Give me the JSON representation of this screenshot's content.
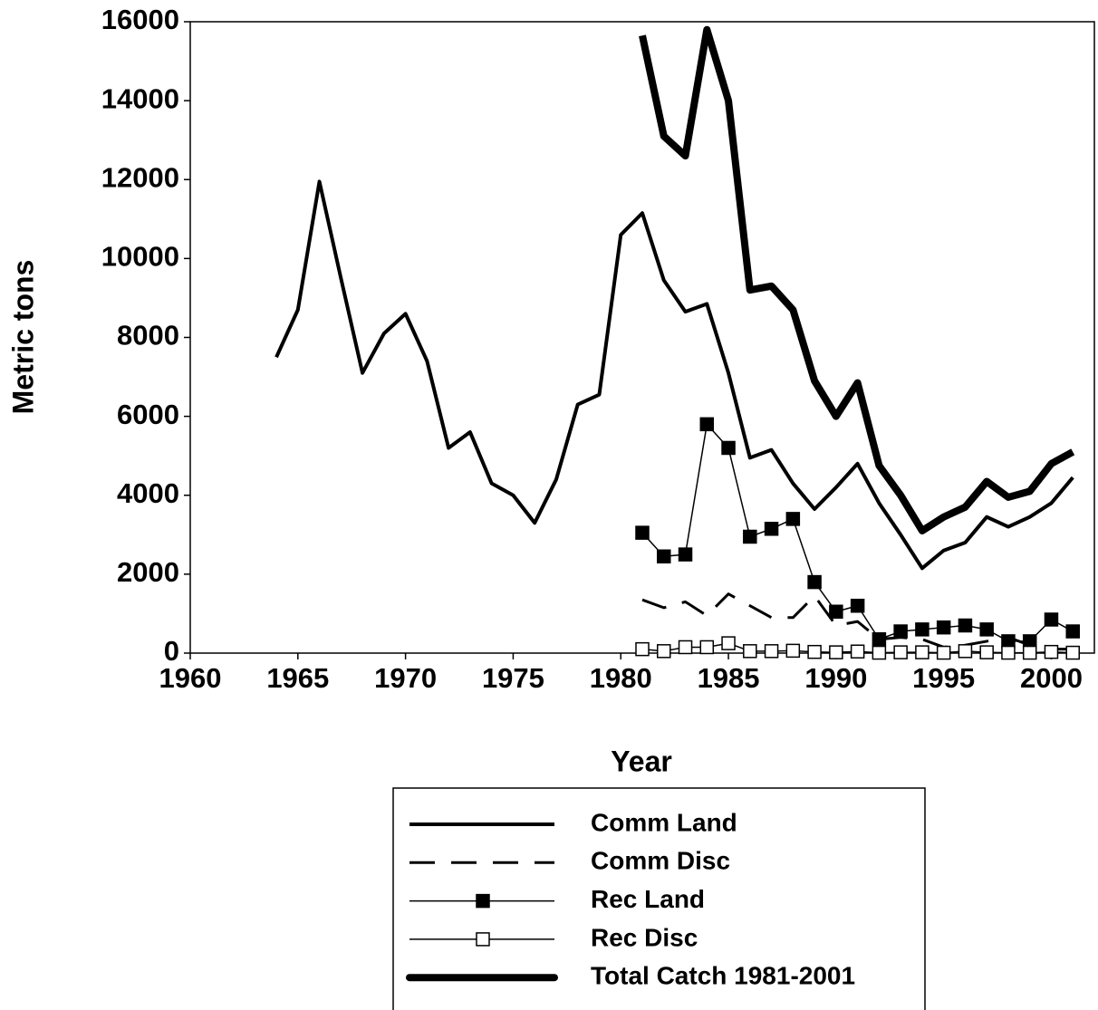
{
  "chart_data": {
    "type": "line",
    "x_label": "Year",
    "y_label": "Metric tons",
    "x": [
      1964,
      1965,
      1966,
      1967,
      1968,
      1969,
      1970,
      1971,
      1972,
      1973,
      1974,
      1975,
      1976,
      1977,
      1978,
      1979,
      1980,
      1981,
      1982,
      1983,
      1984,
      1985,
      1986,
      1987,
      1988,
      1989,
      1990,
      1991,
      1992,
      1993,
      1994,
      1995,
      1996,
      1997,
      1998,
      1999,
      2000,
      2001
    ],
    "xlim": [
      1960,
      2002
    ],
    "xticks": [
      1960,
      1965,
      1970,
      1975,
      1980,
      1985,
      1990,
      1995,
      2000
    ],
    "ylim": [
      0,
      16000
    ],
    "yticks": [
      0,
      2000,
      4000,
      6000,
      8000,
      10000,
      12000,
      14000,
      16000
    ],
    "series": [
      {
        "name": "Comm Land",
        "color": "#000000",
        "line_style": "solid",
        "line_width": 4,
        "marker": "none",
        "values": [
          7500,
          8700,
          11950,
          9500,
          7100,
          8100,
          8600,
          7400,
          5200,
          5600,
          4300,
          4000,
          3300,
          4400,
          6300,
          6550,
          10600,
          11150,
          9450,
          8650,
          8850,
          7100,
          4950,
          5150,
          4300,
          3650,
          4200,
          4800,
          3800,
          3000,
          2150,
          2600,
          2800,
          3450,
          3200,
          3450,
          3800,
          4450
        ]
      },
      {
        "name": "Comm Disc",
        "color": "#000000",
        "line_style": "dashed",
        "line_width": 3,
        "marker": "none",
        "values": [
          null,
          null,
          null,
          null,
          null,
          null,
          null,
          null,
          null,
          null,
          null,
          null,
          null,
          null,
          null,
          null,
          null,
          1350,
          1150,
          1300,
          950,
          1500,
          1200,
          900,
          900,
          1450,
          700,
          800,
          350,
          400,
          350,
          150,
          200,
          300,
          400,
          200,
          100,
          100
        ]
      },
      {
        "name": "Rec Land",
        "color": "#000000",
        "line_style": "solid",
        "line_width": 1.5,
        "marker": "filled-square",
        "values": [
          null,
          null,
          null,
          null,
          null,
          null,
          null,
          null,
          null,
          null,
          null,
          null,
          null,
          null,
          null,
          null,
          null,
          3050,
          2450,
          2500,
          5800,
          5200,
          2950,
          3150,
          3400,
          1800,
          1050,
          1200,
          350,
          550,
          600,
          650,
          700,
          600,
          300,
          300,
          850,
          550
        ]
      },
      {
        "name": "Rec Disc",
        "color": "#000000",
        "line_style": "solid",
        "line_width": 1.5,
        "marker": "open-square",
        "values": [
          null,
          null,
          null,
          null,
          null,
          null,
          null,
          null,
          null,
          null,
          null,
          null,
          null,
          null,
          null,
          null,
          null,
          100,
          50,
          150,
          150,
          250,
          50,
          50,
          60,
          30,
          20,
          40,
          10,
          20,
          20,
          10,
          50,
          20,
          10,
          10,
          30,
          10
        ]
      },
      {
        "name": "Total Catch 1981-2001",
        "color": "#000000",
        "line_style": "solid",
        "line_width": 8,
        "marker": "none",
        "values": [
          null,
          null,
          null,
          null,
          null,
          null,
          null,
          null,
          null,
          null,
          null,
          null,
          null,
          null,
          null,
          null,
          null,
          15650,
          13100,
          12600,
          15800,
          14000,
          9200,
          9300,
          8700,
          6900,
          6000,
          6850,
          4750,
          4000,
          3100,
          3450,
          3700,
          4350,
          3950,
          4100,
          4800,
          5100
        ]
      }
    ]
  }
}
